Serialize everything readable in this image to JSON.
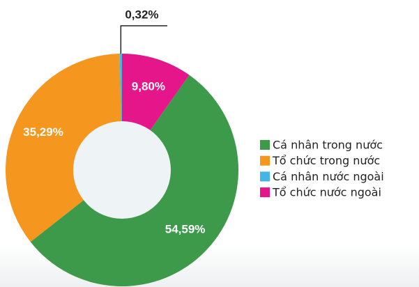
{
  "chart_data": {
    "type": "donut",
    "categories": [
      "Cá nhân trong nước",
      "Tổ chức trong nước",
      "Cá nhân nước ngoài",
      "Tổ chức nước ngoài"
    ],
    "values": [
      54.59,
      35.29,
      0.32,
      9.8
    ],
    "value_labels": [
      "54,59%",
      "35,29%",
      "0,32%",
      "9,80%"
    ],
    "colors": [
      "#3d9a4a",
      "#f5961f",
      "#45b4e6",
      "#e5168a"
    ],
    "legend": "right"
  }
}
